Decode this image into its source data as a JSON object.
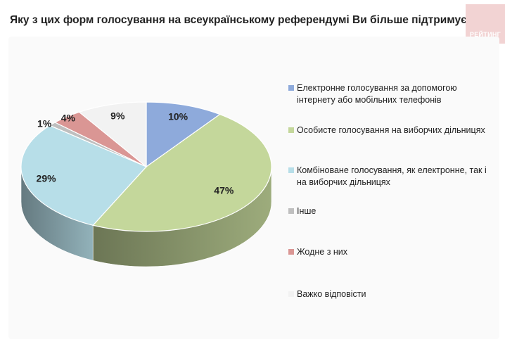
{
  "title": "Яку з цих форм голосування на всеукраїнському референдумі Ви більше підтримуєте?",
  "logo_text": "РЕЙТИНГ",
  "chart_data": {
    "type": "pie",
    "title": "Яку з цих форм голосування на всеукраїнському референдумі Ви більше підтримуєте?",
    "unit": "%",
    "legend_position": "right",
    "slices": [
      {
        "label": "Електронне голосування за допомогою інтернету або мобільних телефонів",
        "value": 10,
        "display": "10%",
        "color": "#8eaadb"
      },
      {
        "label": "Особисте голосування на виборчих дільницях",
        "value": 47,
        "display": "47%",
        "color": "#c4d79b"
      },
      {
        "label": "Комбіноване голосування, як електронне, так і на виборчих дільницях",
        "value": 29,
        "display": "29%",
        "color": "#b7dee8"
      },
      {
        "label": "Інше",
        "value": 1,
        "display": "1%",
        "color": "#bfbfbf"
      },
      {
        "label": "Жодне з них",
        "value": 4,
        "display": "4%",
        "color": "#da9694"
      },
      {
        "label": "Важко відповісти",
        "value": 9,
        "display": "9%",
        "color": "#f2f2f2"
      }
    ]
  }
}
